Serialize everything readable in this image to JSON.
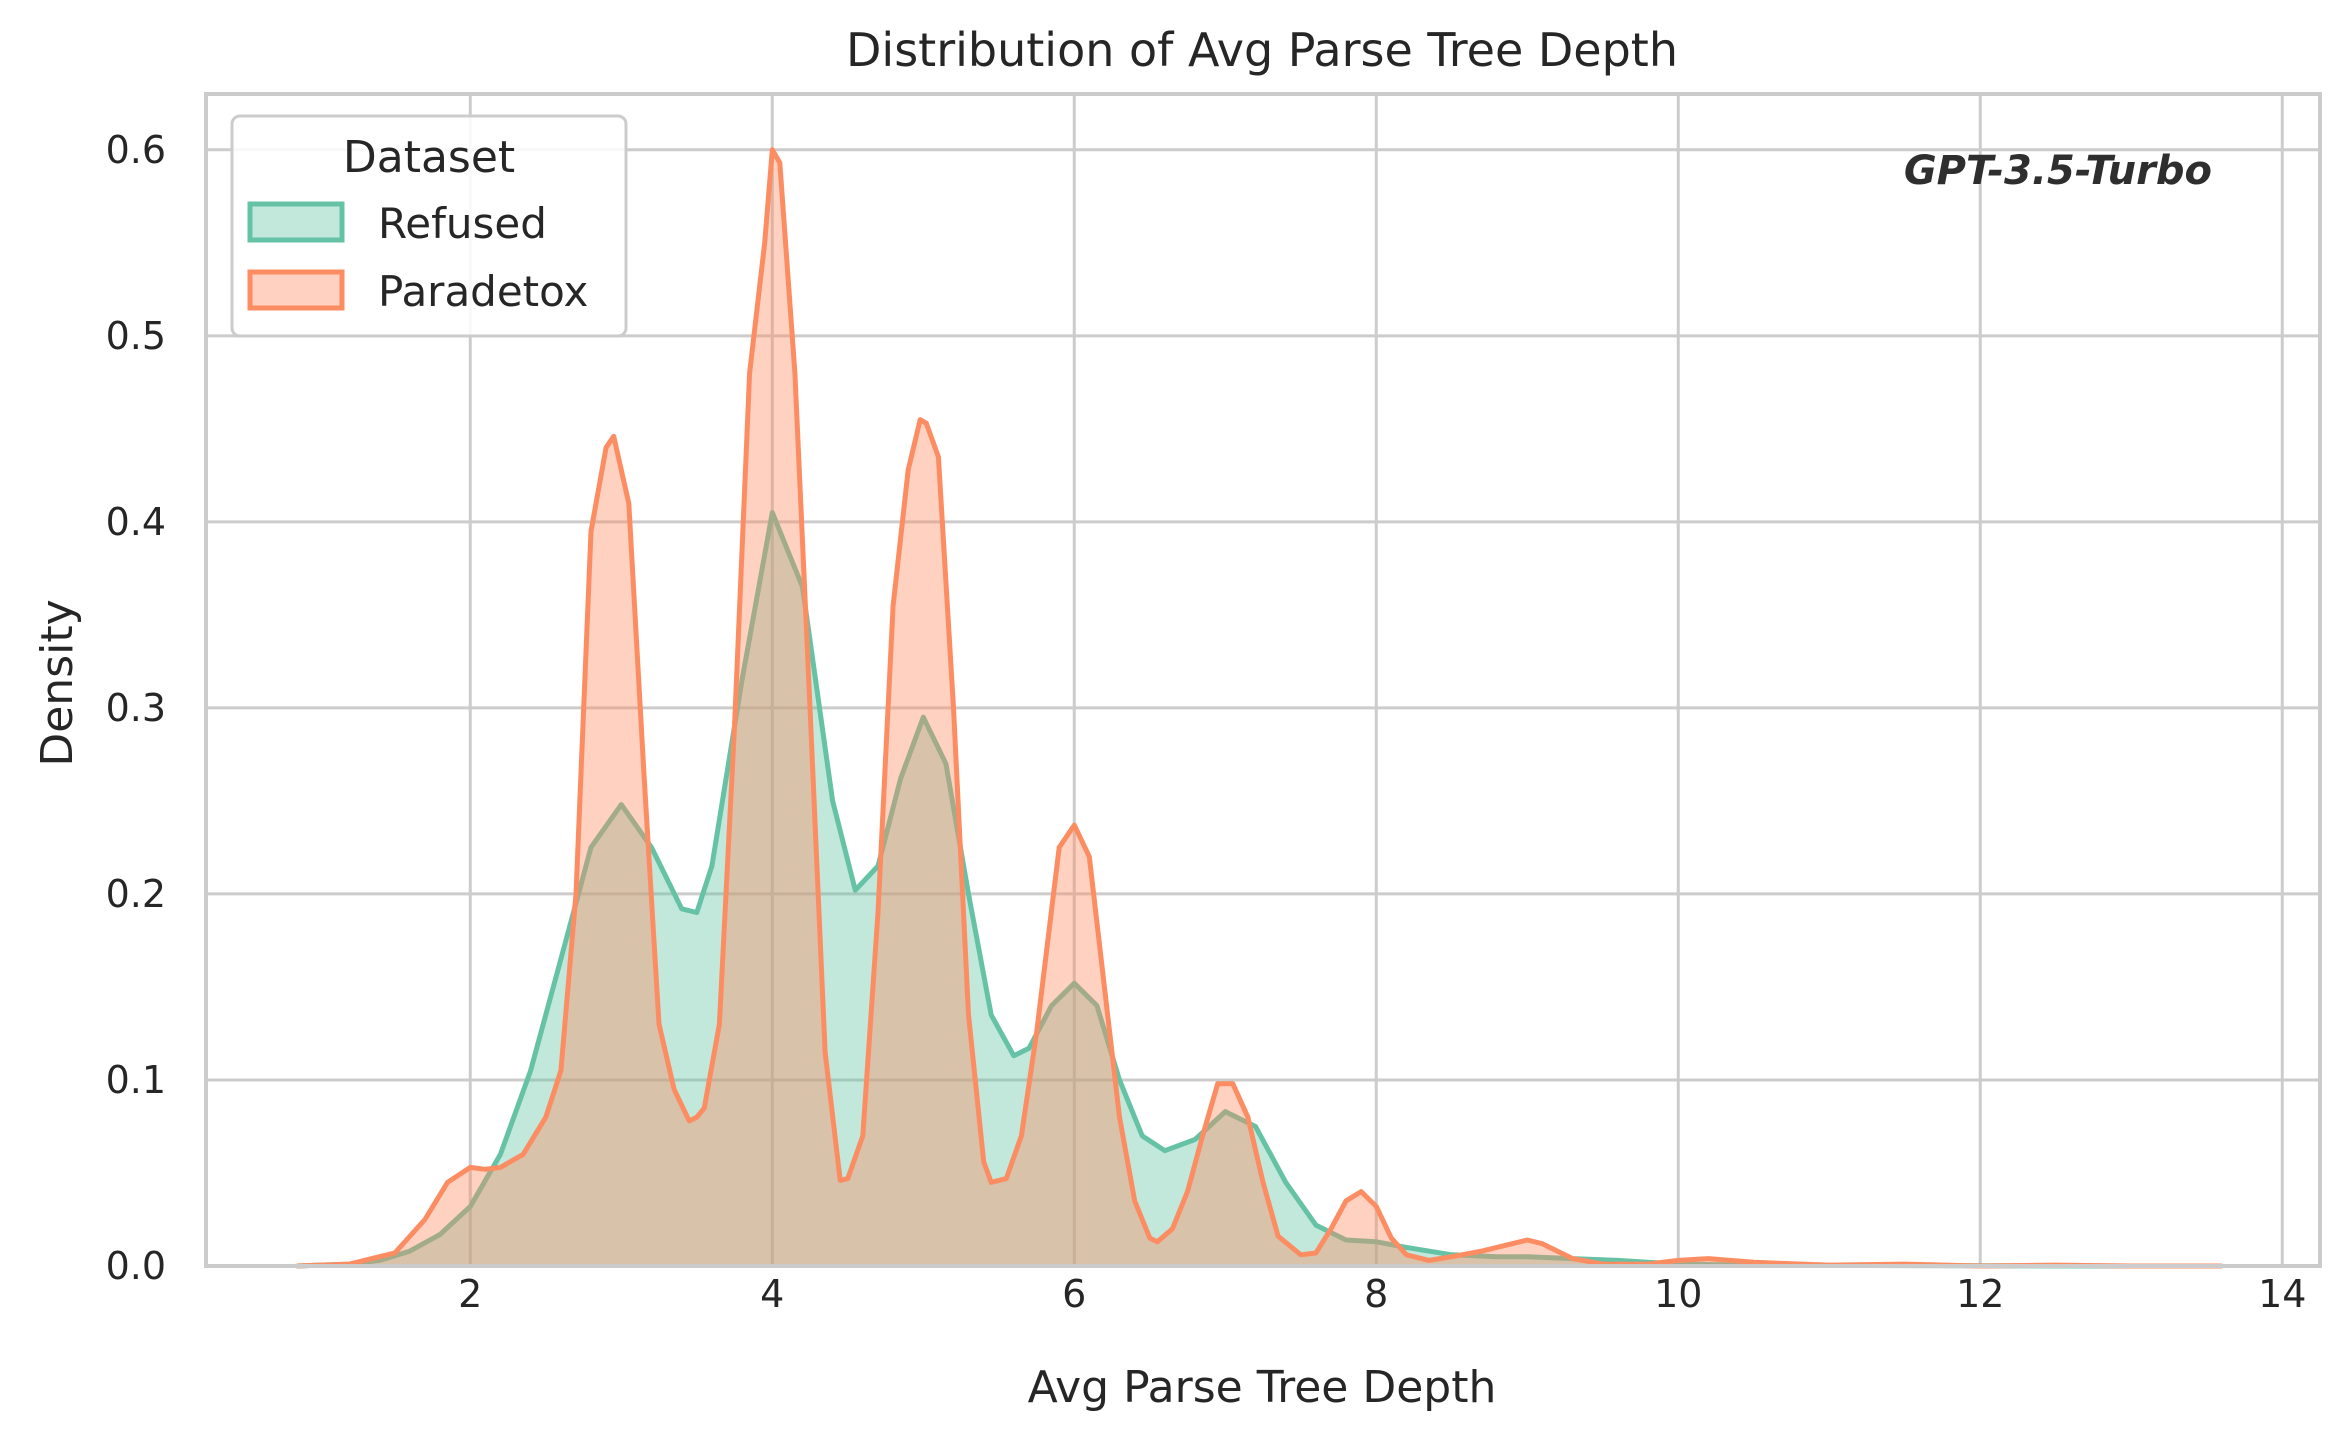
{
  "chart_data": {
    "type": "area",
    "title": "Distribution of Avg Parse Tree Depth",
    "xlabel": "Avg Parse Tree Depth",
    "ylabel": "Density",
    "xlim": [
      0.25,
      14.25
    ],
    "ylim": [
      0,
      0.63
    ],
    "xticks": [
      2,
      4,
      6,
      8,
      10,
      12,
      14
    ],
    "yticks": [
      0.0,
      0.1,
      0.2,
      0.3,
      0.4,
      0.5,
      0.6
    ],
    "xtick_labels": [
      "2",
      "4",
      "6",
      "8",
      "10",
      "12",
      "14"
    ],
    "ytick_labels": [
      "0.0",
      "0.1",
      "0.2",
      "0.3",
      "0.4",
      "0.5",
      "0.6"
    ],
    "grid": true,
    "legend": {
      "title": "Dataset",
      "position": "top-left"
    },
    "annotation": "GPT-3.5-Turbo",
    "annotation_position": "top-right",
    "series": [
      {
        "name": "Refused",
        "color": "#66c2a5",
        "x": [
          0.85,
          1.0,
          1.2,
          1.4,
          1.6,
          1.8,
          2.0,
          2.2,
          2.4,
          2.6,
          2.8,
          3.0,
          3.2,
          3.4,
          3.5,
          3.6,
          3.8,
          4.0,
          4.2,
          4.4,
          4.55,
          4.7,
          4.85,
          5.0,
          5.15,
          5.3,
          5.45,
          5.6,
          5.7,
          5.85,
          6.0,
          6.15,
          6.3,
          6.45,
          6.6,
          6.8,
          7.0,
          7.2,
          7.4,
          7.6,
          7.8,
          8.0,
          8.2,
          8.5,
          8.8,
          9.0,
          9.3,
          9.6,
          10.0,
          10.5,
          11.0,
          12.0,
          13.0,
          13.6
        ],
        "y": [
          0.0,
          0.0005,
          0.001,
          0.003,
          0.008,
          0.017,
          0.032,
          0.06,
          0.105,
          0.165,
          0.225,
          0.248,
          0.225,
          0.192,
          0.19,
          0.215,
          0.315,
          0.405,
          0.365,
          0.25,
          0.202,
          0.215,
          0.262,
          0.295,
          0.27,
          0.2,
          0.135,
          0.113,
          0.117,
          0.14,
          0.152,
          0.14,
          0.1,
          0.07,
          0.062,
          0.068,
          0.083,
          0.075,
          0.045,
          0.022,
          0.014,
          0.013,
          0.01,
          0.006,
          0.005,
          0.005,
          0.004,
          0.003,
          0.001,
          0.0005,
          0.0003,
          0.0001,
          0.0,
          0.0
        ]
      },
      {
        "name": "Paradetox",
        "color": "#fc8d62",
        "x": [
          0.85,
          1.2,
          1.5,
          1.7,
          1.85,
          2.0,
          2.1,
          2.2,
          2.35,
          2.5,
          2.6,
          2.7,
          2.8,
          2.9,
          2.95,
          3.05,
          3.15,
          3.25,
          3.35,
          3.45,
          3.5,
          3.55,
          3.65,
          3.75,
          3.85,
          3.95,
          4.0,
          4.05,
          4.15,
          4.25,
          4.35,
          4.45,
          4.5,
          4.6,
          4.7,
          4.8,
          4.9,
          4.98,
          5.02,
          5.1,
          5.2,
          5.3,
          5.4,
          5.45,
          5.55,
          5.65,
          5.75,
          5.9,
          6.0,
          6.1,
          6.2,
          6.3,
          6.4,
          6.5,
          6.55,
          6.65,
          6.75,
          6.85,
          6.95,
          7.05,
          7.15,
          7.25,
          7.35,
          7.5,
          7.6,
          7.7,
          7.8,
          7.9,
          8.0,
          8.1,
          8.2,
          8.35,
          8.5,
          8.7,
          8.9,
          9.0,
          9.1,
          9.3,
          9.5,
          9.8,
          10.0,
          10.2,
          10.5,
          11.0,
          11.5,
          12.0,
          12.5,
          13.0,
          13.6
        ],
        "y": [
          0.0,
          0.001,
          0.007,
          0.025,
          0.045,
          0.053,
          0.052,
          0.053,
          0.06,
          0.08,
          0.105,
          0.2,
          0.395,
          0.44,
          0.446,
          0.41,
          0.265,
          0.13,
          0.095,
          0.078,
          0.08,
          0.085,
          0.13,
          0.29,
          0.48,
          0.55,
          0.6,
          0.593,
          0.48,
          0.3,
          0.115,
          0.046,
          0.047,
          0.07,
          0.19,
          0.355,
          0.428,
          0.455,
          0.453,
          0.435,
          0.3,
          0.135,
          0.056,
          0.045,
          0.047,
          0.07,
          0.125,
          0.225,
          0.237,
          0.22,
          0.15,
          0.08,
          0.035,
          0.015,
          0.013,
          0.02,
          0.04,
          0.07,
          0.098,
          0.098,
          0.08,
          0.045,
          0.016,
          0.006,
          0.007,
          0.02,
          0.035,
          0.04,
          0.032,
          0.015,
          0.006,
          0.003,
          0.005,
          0.008,
          0.012,
          0.014,
          0.012,
          0.004,
          0.001,
          0.001,
          0.003,
          0.004,
          0.002,
          0.0005,
          0.001,
          0.0,
          0.0005,
          0.0,
          0.0
        ]
      }
    ]
  }
}
